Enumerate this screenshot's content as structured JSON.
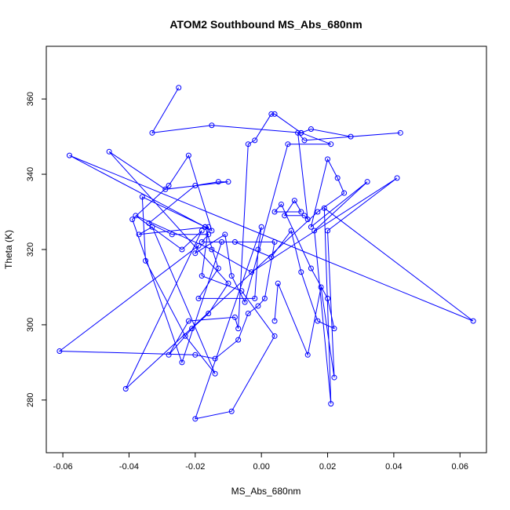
{
  "chart_data": {
    "type": "line",
    "title": "ATOM2 Southbound MS_Abs_680nm",
    "xlabel": "MS_Abs_680nm",
    "ylabel": "Theta (K)",
    "xlim": [
      -0.065,
      0.068
    ],
    "ylim": [
      266,
      374
    ],
    "xticks": [
      -0.06,
      -0.04,
      -0.02,
      0.0,
      0.02,
      0.04,
      0.06
    ],
    "xtick_labels": [
      "-0.06",
      "-0.04",
      "-0.02",
      "0.00",
      "0.02",
      "0.04",
      "0.06"
    ],
    "yticks": [
      280,
      300,
      320,
      340,
      360
    ],
    "ytick_labels": [
      "280",
      "300",
      "320",
      "340",
      "360"
    ],
    "grid": false,
    "color": "#0000ff",
    "series": [
      {
        "x": [
          -0.025,
          -0.033,
          -0.015,
          0.012,
          0.004,
          0.003,
          -0.002,
          -0.004,
          -0.007,
          -0.008,
          -0.022,
          -0.028,
          -0.021,
          -0.016,
          -0.01,
          -0.046,
          -0.029,
          -0.01,
          -0.013,
          -0.02,
          -0.034,
          -0.027,
          -0.016,
          -0.018,
          -0.008,
          0.003,
          0.009,
          0.012,
          0.017,
          0.022,
          0.02,
          0.015,
          0.006,
          0.004,
          0.012,
          0.01,
          0.007,
          0.013,
          0.014,
          0.011,
          0.013,
          0.042,
          0.027,
          0.015,
          0.012,
          0.021,
          0.008,
          -0.005,
          -0.009,
          -0.011,
          -0.02,
          -0.019,
          -0.061,
          -0.02,
          -0.014,
          -0.007,
          -0.004,
          -0.001,
          0.001,
          0.004,
          -0.012,
          -0.024,
          -0.039,
          -0.028,
          -0.022,
          -0.015,
          -0.017,
          -0.036,
          -0.035,
          -0.023,
          -0.014,
          -0.033,
          -0.037,
          -0.016,
          -0.018,
          -0.006,
          0.004,
          -0.009,
          -0.02,
          0.0,
          -0.001,
          -0.002,
          -0.019,
          -0.013,
          -0.017,
          -0.058,
          0.064,
          0.019,
          0.021,
          0.016,
          0.032,
          0.015,
          0.02,
          0.023,
          0.025,
          0.017,
          -0.041,
          -0.018,
          -0.024,
          -0.038,
          -0.015,
          -0.003,
          0.041,
          0.02,
          0.022,
          0.018,
          0.014,
          0.005,
          0.004
        ],
        "y": [
          363,
          351,
          353,
          351,
          356,
          356,
          349,
          348,
          299,
          302,
          301,
          292,
          299,
          303,
          311,
          346,
          336,
          338,
          338,
          337,
          327,
          324,
          324,
          322,
          322,
          318,
          325,
          314,
          301,
          299,
          307,
          315,
          332,
          330,
          330,
          333,
          329,
          329,
          328,
          351,
          349,
          351,
          350,
          352,
          351,
          348,
          348,
          306,
          313,
          324,
          319,
          321,
          293,
          292,
          291,
          296,
          303,
          305,
          307,
          322,
          322,
          290,
          328,
          337,
          345,
          325,
          326,
          334,
          317,
          297,
          287,
          326,
          324,
          326,
          313,
          309,
          297,
          277,
          275,
          326,
          320,
          307,
          307,
          315,
          326,
          345,
          301,
          331,
          279,
          325,
          338,
          326,
          344,
          339,
          335,
          330,
          283,
          325,
          320,
          329,
          320,
          314,
          339,
          325,
          286,
          310,
          292,
          311,
          301
        ]
      }
    ]
  }
}
